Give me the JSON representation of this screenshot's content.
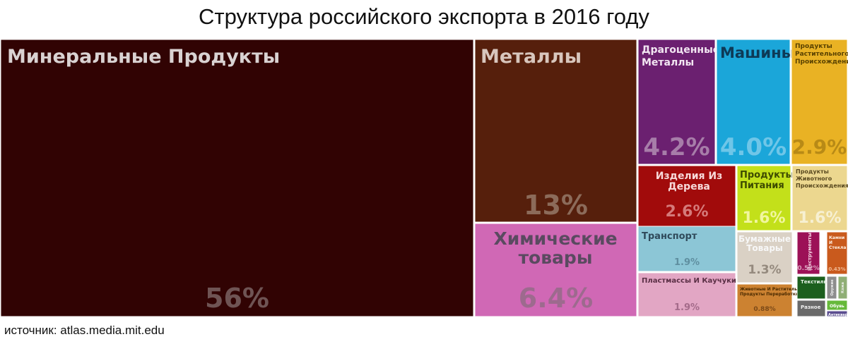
{
  "title": "Структура российского экспорта в 2016 году",
  "source": "источник: atlas.media.mit.edu",
  "chart_data": {
    "type": "treemap",
    "title": "Структура российского экспорта в 2016 году",
    "unit": "%",
    "items": [
      {
        "name": "Минеральные Продукты",
        "value_label": "56%",
        "value": 56,
        "color": "#310303"
      },
      {
        "name": "Металлы",
        "value_label": "13%",
        "value": 13,
        "color": "#561f0c"
      },
      {
        "name": "Химические товары",
        "value_label": "6.4%",
        "value": 6.4,
        "color": "#d068b5"
      },
      {
        "name": "Драгоценные Металлы",
        "value_label": "4.2%",
        "value": 4.2,
        "color": "#6b2070"
      },
      {
        "name": "Машины",
        "value_label": "4.0%",
        "value": 4.0,
        "color": "#1ba6d9"
      },
      {
        "name": "Продукты Растительного Происхождения",
        "value_label": "2.9%",
        "value": 2.9,
        "color": "#e9b224"
      },
      {
        "name": "Изделия Из Дерева",
        "value_label": "2.6%",
        "value": 2.6,
        "color": "#a10b0b"
      },
      {
        "name": "Продукты Питания",
        "value_label": "1.6%",
        "value": 1.6,
        "color": "#c3e01a"
      },
      {
        "name": "Продукты Животного Происхождения",
        "value_label": "1.6%",
        "value": 1.6,
        "color": "#ecd78f"
      },
      {
        "name": "Транспорт",
        "value_label": "1.9%",
        "value": 1.9,
        "color": "#8cc6d6"
      },
      {
        "name": "Пластмассы И Каучуки",
        "value_label": "1.9%",
        "value": 1.9,
        "color": "#e2a6c4"
      },
      {
        "name": "Бумажные Товары",
        "value_label": "1.3%",
        "value": 1.3,
        "color": "#dad1c5"
      },
      {
        "name": "Животные И Растительные Продукты Переработки",
        "value_label": "0.88%",
        "value": 0.88,
        "color": "#cc8231"
      },
      {
        "name": "Инструменты",
        "value_label": "0.52%",
        "value": 0.52,
        "color": "#9c1157"
      },
      {
        "name": "Камни И Стекла",
        "value_label": "0.43%",
        "value": 0.43,
        "color": "#c95a1d"
      },
      {
        "name": "Текстиль",
        "value_label": "",
        "value": null,
        "color": "#1c5f1e"
      },
      {
        "name": "Оружие",
        "value_label": "",
        "value": null,
        "color": "#8d8d8d"
      },
      {
        "name": "Кожа",
        "value_label": "",
        "value": null,
        "color": "#8fae75"
      },
      {
        "name": "Разное",
        "value_label": "",
        "value": null,
        "color": "#6a6a6a"
      },
      {
        "name": "Обувь",
        "value_label": "",
        "value": null,
        "color": "#66b93a"
      },
      {
        "name": "Антиквар",
        "value_label": "",
        "value": null,
        "color": "#5a4d8f"
      }
    ]
  }
}
